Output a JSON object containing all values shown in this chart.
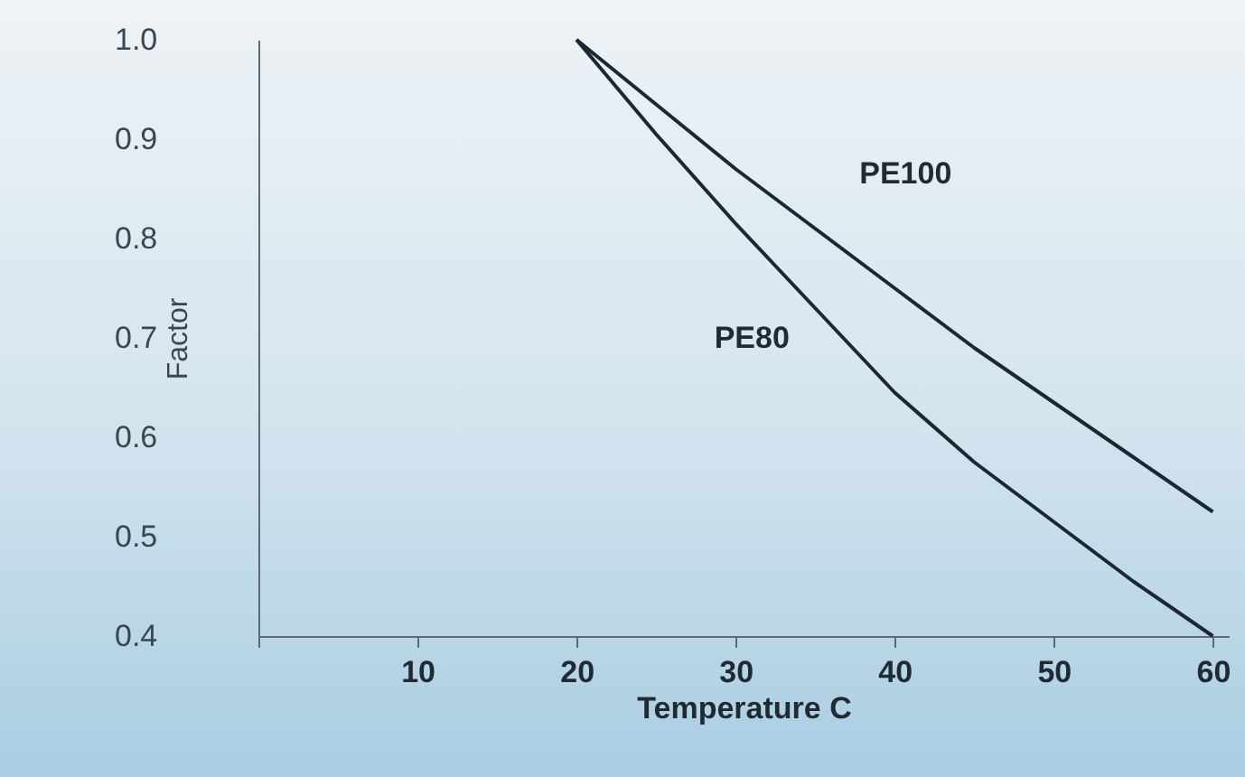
{
  "chart_data": {
    "type": "line",
    "xlabel": "Temperature  C",
    "ylabel": "Factor",
    "xlim": [
      0,
      61
    ],
    "ylim": [
      0.4,
      1.0
    ],
    "xticks": [
      {
        "value": 0,
        "label": null
      },
      10,
      20,
      30,
      40,
      50,
      60
    ],
    "yticks": [
      {
        "value": 0.4,
        "label": "0.4"
      },
      {
        "value": 0.5,
        "label": "0.5"
      },
      {
        "value": 0.6,
        "label": "0.6"
      },
      {
        "value": 0.7,
        "label": "0.7"
      },
      {
        "value": 0.8,
        "label": "0.8"
      },
      {
        "value": 0.9,
        "label": "0.9"
      },
      {
        "value": 1.0,
        "label": "1.0"
      }
    ],
    "grid": false,
    "legend": false,
    "marker": "none",
    "line_style": "solid",
    "series": [
      {
        "name": "PE100",
        "color": "#1b2733",
        "x": [
          20,
          25,
          30,
          35,
          40,
          45,
          50,
          55,
          60
        ],
        "values": [
          1.0,
          0.935,
          0.87,
          0.81,
          0.75,
          0.69,
          0.635,
          0.58,
          0.525
        ]
      },
      {
        "name": "PE80",
        "color": "#1b2733",
        "x": [
          20,
          25,
          30,
          35,
          40,
          45,
          50,
          55,
          60
        ],
        "values": [
          1.0,
          0.905,
          0.815,
          0.73,
          0.645,
          0.575,
          0.515,
          0.455,
          0.4
        ]
      }
    ]
  }
}
